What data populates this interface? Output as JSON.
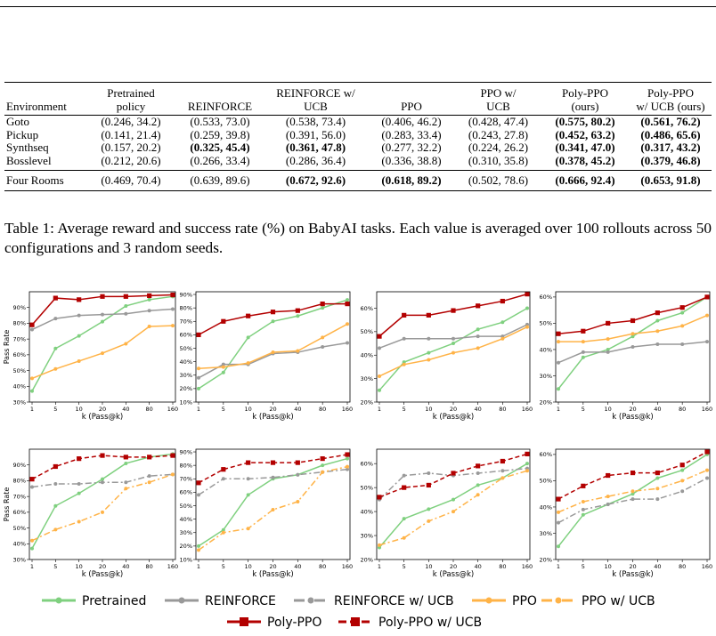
{
  "table": {
    "header": [
      [
        "Environment"
      ],
      [
        "Pretrained",
        "policy"
      ],
      [
        "REINFORCE"
      ],
      [
        "REINFORCE w/",
        "UCB"
      ],
      [
        "PPO"
      ],
      [
        "PPO w/",
        "UCB"
      ],
      [
        "Poly-PPO",
        "(ours)"
      ],
      [
        "Poly-PPO",
        "w/ UCB (ours)"
      ]
    ],
    "sections": [
      [
        [
          "Goto",
          "(0.246, 34.2)",
          "(0.533, 73.0)",
          "(0.538, 73.4)",
          "(0.406, 46.2)",
          "(0.428, 47.4)",
          "(0.575, 80.2)",
          "(0.561, 76.2)"
        ],
        [
          "Pickup",
          "(0.141, 21.4)",
          "(0.259, 39.8)",
          "(0.391, 56.0)",
          "(0.283, 33.4)",
          "(0.243, 27.8)",
          "(0.452, 63.2)",
          "(0.486, 65.6)"
        ],
        [
          "Synthseq",
          "(0.157, 20.2)",
          "(0.325, 45.4)",
          "(0.361, 47.8)",
          "(0.277, 32.2)",
          "(0.224, 26.2)",
          "(0.341, 47.0)",
          "(0.317, 43.2)"
        ],
        [
          "Bosslevel",
          "(0.212, 20.6)",
          "(0.266, 33.4)",
          "(0.286, 36.4)",
          "(0.336, 38.8)",
          "(0.310, 35.8)",
          "(0.378, 45.2)",
          "(0.379, 46.8)"
        ]
      ],
      [
        [
          "Four Rooms",
          "(0.469, 70.4)",
          "(0.639, 89.6)",
          "(0.672, 92.6)",
          "(0.618, 89.2)",
          "(0.502, 78.6)",
          "(0.666, 92.4)",
          "(0.653, 91.8)"
        ]
      ]
    ],
    "bold": [
      [
        0,
        0,
        6
      ],
      [
        0,
        0,
        7
      ],
      [
        0,
        1,
        6
      ],
      [
        0,
        1,
        7
      ],
      [
        0,
        2,
        2
      ],
      [
        0,
        2,
        3
      ],
      [
        0,
        2,
        6
      ],
      [
        0,
        2,
        7
      ],
      [
        0,
        3,
        6
      ],
      [
        0,
        3,
        7
      ],
      [
        1,
        0,
        3
      ],
      [
        1,
        0,
        4
      ],
      [
        1,
        0,
        6
      ],
      [
        1,
        0,
        7
      ]
    ]
  },
  "caption": "Table 1: Average reward and success rate (%) on BabyAI tasks. Each value is averaged over 100 rollouts across 50 configurations and 3 random seeds.",
  "chart_data": [
    {
      "type": "line",
      "ylabel": "Pass Rate",
      "xlabel": "k (Pass@k)",
      "categories": [
        "1",
        "5",
        "10",
        "20",
        "40",
        "80",
        "160"
      ],
      "ylim": [
        30,
        100
      ],
      "yticks": [
        {
          "value": 30,
          "label": "30%"
        },
        {
          "value": 40,
          "label": "40%"
        },
        {
          "value": 50,
          "label": "50%"
        },
        {
          "value": 60,
          "label": "60%"
        },
        {
          "value": 70,
          "label": "70%"
        },
        {
          "value": 80,
          "label": "80%"
        },
        {
          "value": 90,
          "label": "90%"
        }
      ],
      "series": [
        {
          "name": "Pretrained",
          "color": "#7fd07f",
          "style": "solid",
          "marker": "circle",
          "values": [
            37,
            64,
            72,
            81,
            91,
            95,
            97
          ]
        },
        {
          "name": "REINFORCE",
          "color": "#999999",
          "style": "solid",
          "marker": "circle",
          "values": [
            76,
            83,
            85,
            85.5,
            86,
            88,
            89
          ]
        },
        {
          "name": "PPO",
          "color": "#ffb347",
          "style": "solid",
          "marker": "circle",
          "values": [
            45,
            51,
            56,
            61,
            67,
            78,
            78.5
          ]
        },
        {
          "name": "Poly-PPO",
          "color": "#b30000",
          "style": "solid",
          "marker": "square",
          "values": [
            79,
            96,
            95,
            97,
            97,
            97.5,
            98
          ]
        }
      ]
    },
    {
      "type": "line",
      "xlabel": "k (Pass@k)",
      "categories": [
        "1",
        "5",
        "10",
        "20",
        "40",
        "80",
        "160"
      ],
      "ylim": [
        10,
        92
      ],
      "yticks": [
        {
          "value": 10,
          "label": "10%"
        },
        {
          "value": 20,
          "label": "20%"
        },
        {
          "value": 30,
          "label": "30%"
        },
        {
          "value": 40,
          "label": "40%"
        },
        {
          "value": 50,
          "label": "50%"
        },
        {
          "value": 60,
          "label": "60%"
        },
        {
          "value": 70,
          "label": "70%"
        },
        {
          "value": 80,
          "label": "80%"
        },
        {
          "value": 90,
          "label": "90%"
        }
      ],
      "series": [
        {
          "name": "Pretrained",
          "color": "#7fd07f",
          "style": "solid",
          "marker": "circle",
          "values": [
            20,
            32,
            58,
            70,
            74,
            80,
            86
          ]
        },
        {
          "name": "REINFORCE",
          "color": "#999999",
          "style": "solid",
          "marker": "circle",
          "values": [
            28,
            38,
            38,
            46,
            47,
            51,
            54
          ]
        },
        {
          "name": "PPO",
          "color": "#ffb347",
          "style": "solid",
          "marker": "circle",
          "values": [
            35,
            36,
            39,
            47,
            48,
            58,
            68
          ]
        },
        {
          "name": "Poly-PPO",
          "color": "#b30000",
          "style": "solid",
          "marker": "square",
          "values": [
            60,
            70,
            74,
            77,
            78,
            83,
            83
          ]
        }
      ]
    },
    {
      "type": "line",
      "xlabel": "k (Pass@k)",
      "categories": [
        "1",
        "5",
        "10",
        "20",
        "40",
        "80",
        "160"
      ],
      "ylim": [
        20,
        67
      ],
      "yticks": [
        {
          "value": 20,
          "label": "20%"
        },
        {
          "value": 30,
          "label": "30%"
        },
        {
          "value": 40,
          "label": "40%"
        },
        {
          "value": 50,
          "label": "50%"
        },
        {
          "value": 60,
          "label": "60%"
        }
      ],
      "series": [
        {
          "name": "Pretrained",
          "color": "#7fd07f",
          "style": "solid",
          "marker": "circle",
          "values": [
            25,
            37,
            41,
            45,
            51,
            54,
            60
          ]
        },
        {
          "name": "REINFORCE",
          "color": "#999999",
          "style": "solid",
          "marker": "circle",
          "values": [
            43,
            47,
            47,
            47,
            48,
            48,
            53
          ]
        },
        {
          "name": "PPO",
          "color": "#ffb347",
          "style": "solid",
          "marker": "circle",
          "values": [
            31,
            36,
            38,
            41,
            43,
            47,
            52
          ]
        },
        {
          "name": "Poly-PPO",
          "color": "#b30000",
          "style": "solid",
          "marker": "square",
          "values": [
            48,
            57,
            57,
            59,
            61,
            63,
            66
          ]
        }
      ]
    },
    {
      "type": "line",
      "xlabel": "k (Pass@k)",
      "categories": [
        "1",
        "5",
        "10",
        "20",
        "40",
        "80",
        "160"
      ],
      "ylim": [
        20,
        62
      ],
      "yticks": [
        {
          "value": 20,
          "label": "20%"
        },
        {
          "value": 30,
          "label": "30%"
        },
        {
          "value": 40,
          "label": "40%"
        },
        {
          "value": 50,
          "label": "50%"
        },
        {
          "value": 60,
          "label": "60%"
        }
      ],
      "series": [
        {
          "name": "Pretrained",
          "color": "#7fd07f",
          "style": "solid",
          "marker": "circle",
          "values": [
            25,
            37,
            40,
            45,
            51,
            54,
            60
          ]
        },
        {
          "name": "REINFORCE",
          "color": "#999999",
          "style": "solid",
          "marker": "circle",
          "values": [
            35,
            39,
            39,
            41,
            42,
            42,
            43
          ]
        },
        {
          "name": "PPO",
          "color": "#ffb347",
          "style": "solid",
          "marker": "circle",
          "values": [
            43,
            43,
            44,
            46,
            47,
            49,
            53
          ]
        },
        {
          "name": "Poly-PPO",
          "color": "#b30000",
          "style": "solid",
          "marker": "square",
          "values": [
            46,
            47,
            50,
            51,
            54,
            56,
            60
          ]
        }
      ]
    },
    {
      "type": "line",
      "ylabel": "Pass Rate",
      "xlabel": "k (Pass@k)",
      "categories": [
        "1",
        "5",
        "10",
        "20",
        "40",
        "80",
        "160"
      ],
      "ylim": [
        30,
        100
      ],
      "yticks": [
        {
          "value": 30,
          "label": "30%"
        },
        {
          "value": 40,
          "label": "40%"
        },
        {
          "value": 50,
          "label": "50%"
        },
        {
          "value": 60,
          "label": "60%"
        },
        {
          "value": 70,
          "label": "70%"
        },
        {
          "value": 80,
          "label": "80%"
        },
        {
          "value": 90,
          "label": "90%"
        }
      ],
      "series": [
        {
          "name": "Pretrained",
          "color": "#7fd07f",
          "style": "solid",
          "marker": "circle",
          "values": [
            37,
            64,
            72,
            81,
            91,
            95,
            97
          ]
        },
        {
          "name": "REINFORCE w/ UCB",
          "color": "#999999",
          "style": "dashdot",
          "marker": "circle",
          "values": [
            76,
            78,
            78,
            79,
            79,
            83,
            84
          ]
        },
        {
          "name": "PPO w/ UCB",
          "color": "#ffb347",
          "style": "dashdot",
          "marker": "circle",
          "values": [
            42,
            49,
            54,
            60,
            75,
            79,
            84
          ]
        },
        {
          "name": "Poly-PPO w/ UCB",
          "color": "#b30000",
          "style": "dashed",
          "marker": "square",
          "values": [
            81,
            89,
            94,
            96,
            95,
            95,
            96
          ]
        }
      ]
    },
    {
      "type": "line",
      "xlabel": "k (Pass@k)",
      "categories": [
        "1",
        "5",
        "10",
        "20",
        "40",
        "80",
        "160"
      ],
      "ylim": [
        10,
        92
      ],
      "yticks": [
        {
          "value": 10,
          "label": "10%"
        },
        {
          "value": 20,
          "label": "20%"
        },
        {
          "value": 30,
          "label": "30%"
        },
        {
          "value": 40,
          "label": "40%"
        },
        {
          "value": 50,
          "label": "50%"
        },
        {
          "value": 60,
          "label": "60%"
        },
        {
          "value": 70,
          "label": "70%"
        },
        {
          "value": 80,
          "label": "80%"
        },
        {
          "value": 90,
          "label": "90%"
        }
      ],
      "series": [
        {
          "name": "Pretrained",
          "color": "#7fd07f",
          "style": "solid",
          "marker": "circle",
          "values": [
            20,
            32,
            58,
            70,
            73,
            80,
            85
          ]
        },
        {
          "name": "REINFORCE w/ UCB",
          "color": "#999999",
          "style": "dashdot",
          "marker": "circle",
          "values": [
            58,
            70,
            70,
            71,
            73,
            75,
            77
          ]
        },
        {
          "name": "PPO w/ UCB",
          "color": "#ffb347",
          "style": "dashdot",
          "marker": "circle",
          "values": [
            17,
            30,
            33,
            47,
            53,
            75,
            79
          ]
        },
        {
          "name": "Poly-PPO w/ UCB",
          "color": "#b30000",
          "style": "dashed",
          "marker": "square",
          "values": [
            67,
            77,
            82,
            82,
            82,
            85,
            88
          ]
        }
      ]
    },
    {
      "type": "line",
      "xlabel": "k (Pass@k)",
      "categories": [
        "1",
        "5",
        "10",
        "20",
        "40",
        "80",
        "160"
      ],
      "ylim": [
        20,
        66
      ],
      "yticks": [
        {
          "value": 20,
          "label": "20%"
        },
        {
          "value": 30,
          "label": "30%"
        },
        {
          "value": 40,
          "label": "40%"
        },
        {
          "value": 50,
          "label": "50%"
        },
        {
          "value": 60,
          "label": "60%"
        }
      ],
      "series": [
        {
          "name": "Pretrained",
          "color": "#7fd07f",
          "style": "solid",
          "marker": "circle",
          "values": [
            25,
            37,
            41,
            45,
            51,
            54,
            60
          ]
        },
        {
          "name": "REINFORCE w/ UCB",
          "color": "#999999",
          "style": "dashdot",
          "marker": "circle",
          "values": [
            45,
            55,
            56,
            55,
            56,
            57,
            58
          ]
        },
        {
          "name": "PPO w/ UCB",
          "color": "#ffb347",
          "style": "dashdot",
          "marker": "circle",
          "values": [
            26,
            29,
            36,
            40,
            47,
            54,
            57
          ]
        },
        {
          "name": "Poly-PPO w/ UCB",
          "color": "#b30000",
          "style": "dashed",
          "marker": "square",
          "values": [
            46,
            50,
            51,
            56,
            59,
            61,
            64
          ]
        }
      ]
    },
    {
      "type": "line",
      "xlabel": "k (Pass@k)",
      "categories": [
        "1",
        "5",
        "10",
        "20",
        "40",
        "80",
        "160"
      ],
      "ylim": [
        20,
        62
      ],
      "yticks": [
        {
          "value": 20,
          "label": "20%"
        },
        {
          "value": 30,
          "label": "30%"
        },
        {
          "value": 40,
          "label": "40%"
        },
        {
          "value": 50,
          "label": "50%"
        },
        {
          "value": 60,
          "label": "60%"
        }
      ],
      "series": [
        {
          "name": "Pretrained",
          "color": "#7fd07f",
          "style": "solid",
          "marker": "circle",
          "values": [
            25,
            37,
            41,
            45,
            51,
            54,
            60
          ]
        },
        {
          "name": "REINFORCE w/ UCB",
          "color": "#999999",
          "style": "dashdot",
          "marker": "circle",
          "values": [
            34,
            39,
            41,
            43,
            43,
            46,
            51
          ]
        },
        {
          "name": "PPO w/ UCB",
          "color": "#ffb347",
          "style": "dashdot",
          "marker": "circle",
          "values": [
            38,
            42,
            44,
            46,
            47,
            50,
            54
          ]
        },
        {
          "name": "Poly-PPO w/ UCB",
          "color": "#b30000",
          "style": "dashed",
          "marker": "square",
          "values": [
            43,
            48,
            52,
            53,
            53,
            56,
            61
          ]
        }
      ]
    }
  ]
}
